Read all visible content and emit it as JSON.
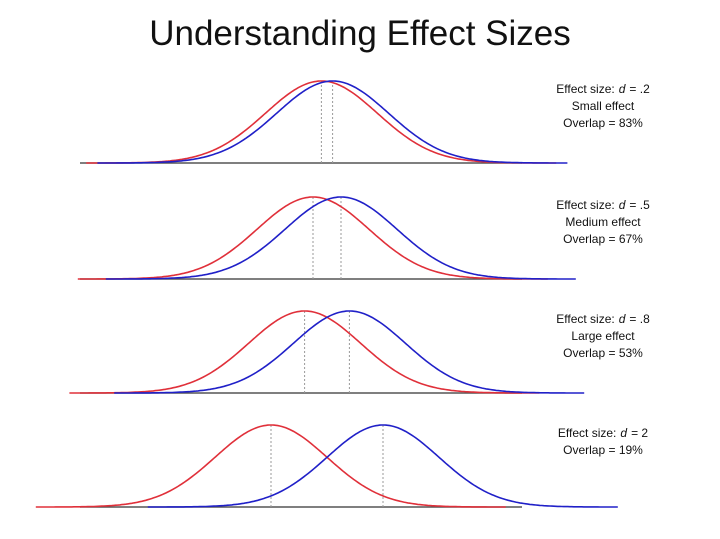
{
  "title": "Understanding Effect Sizes",
  "panels": [
    {
      "effect_label": "Effect size:",
      "d_symbol": "d",
      "d": {
        "value": 0.2,
        "label": "= .2"
      },
      "description": "Small effect",
      "overlap": "Overlap = 83%"
    },
    {
      "effect_label": "Effect size:",
      "d_symbol": "d",
      "d": {
        "value": 0.5,
        "label": "= .5"
      },
      "description": "Medium effect",
      "overlap": "Overlap = 67%"
    },
    {
      "effect_label": "Effect size:",
      "d_symbol": "d",
      "d": {
        "value": 0.8,
        "label": "= .8"
      },
      "description": "Large effect",
      "overlap": "Overlap = 53%"
    },
    {
      "effect_label": "Effect size:",
      "d_symbol": "d",
      "d": {
        "value": 2,
        "label": "= 2"
      },
      "overlap": "Overlap = 19%"
    }
  ],
  "colors": {
    "control": "#e0303a",
    "treatment": "#2020c8"
  }
}
